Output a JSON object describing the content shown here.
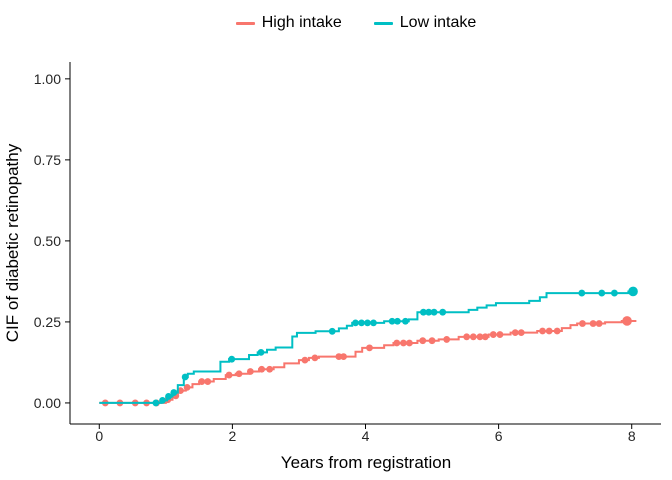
{
  "figure": {
    "background": "#ffffff"
  },
  "legend": {
    "position": "top-center",
    "items": [
      {
        "label": "High intake",
        "color": "#F8766D"
      },
      {
        "label": "Low intake",
        "color": "#00BFC4"
      }
    ]
  },
  "chart_data": {
    "type": "line",
    "subtype": "step-cumulative-incidence",
    "title": "",
    "xlabel": "Years from registration",
    "ylabel": "CIF of diabetic retinopathy",
    "x_ticks": {
      "values": [
        0,
        2,
        4,
        6,
        8
      ],
      "labels": [
        "0",
        "2",
        "4",
        "6",
        "8"
      ]
    },
    "y_ticks": {
      "values": [
        0,
        0.25,
        0.5,
        0.75,
        1.0
      ],
      "labels": [
        "0.00",
        "0.25",
        "0.50",
        "0.75",
        "1.00"
      ]
    },
    "xlim": [
      -0.44,
      8.44
    ],
    "ylim": [
      -0.065,
      1.052
    ],
    "grid": false,
    "legend_position": "top",
    "curve_style": "step-after",
    "series": [
      {
        "name": "High intake",
        "color": "#F8766D",
        "steps": [
          [
            0.0,
            0.0
          ],
          [
            1.0,
            0.01
          ],
          [
            1.1,
            0.022
          ],
          [
            1.18,
            0.038
          ],
          [
            1.3,
            0.048
          ],
          [
            1.4,
            0.058
          ],
          [
            1.5,
            0.066
          ],
          [
            1.72,
            0.074
          ],
          [
            1.9,
            0.086
          ],
          [
            2.05,
            0.09
          ],
          [
            2.25,
            0.097
          ],
          [
            2.4,
            0.104
          ],
          [
            2.62,
            0.11
          ],
          [
            2.78,
            0.122
          ],
          [
            3.0,
            0.132
          ],
          [
            3.15,
            0.139
          ],
          [
            3.3,
            0.143
          ],
          [
            3.85,
            0.158
          ],
          [
            3.95,
            0.17
          ],
          [
            4.28,
            0.178
          ],
          [
            4.42,
            0.185
          ],
          [
            4.78,
            0.192
          ],
          [
            5.1,
            0.196
          ],
          [
            5.4,
            0.204
          ],
          [
            5.85,
            0.211
          ],
          [
            6.18,
            0.217
          ],
          [
            6.58,
            0.222
          ],
          [
            6.95,
            0.231
          ],
          [
            7.08,
            0.24
          ],
          [
            7.18,
            0.245
          ],
          [
            7.6,
            0.249
          ],
          [
            7.85,
            0.253
          ],
          [
            8.07,
            0.253
          ]
        ],
        "markers": [
          0.09,
          0.31,
          0.54,
          0.71,
          0.86,
          1.03,
          1.15,
          1.22,
          1.32,
          1.54,
          1.63,
          1.95,
          2.1,
          2.27,
          2.44,
          2.56,
          3.09,
          3.24,
          3.6,
          3.67,
          4.06,
          4.47,
          4.57,
          4.66,
          4.86,
          5.0,
          5.22,
          5.52,
          5.62,
          5.72,
          5.8,
          5.92,
          6.02,
          6.25,
          6.34,
          6.66,
          6.76,
          6.88,
          7.26,
          7.42,
          7.51
        ],
        "end_marker": 7.93
      },
      {
        "name": "Low intake",
        "color": "#00BFC4",
        "steps": [
          [
            0.0,
            0.0
          ],
          [
            0.93,
            0.008
          ],
          [
            1.02,
            0.02
          ],
          [
            1.1,
            0.032
          ],
          [
            1.18,
            0.055
          ],
          [
            1.27,
            0.08
          ],
          [
            1.33,
            0.09
          ],
          [
            1.42,
            0.097
          ],
          [
            1.82,
            0.127
          ],
          [
            1.95,
            0.135
          ],
          [
            2.25,
            0.148
          ],
          [
            2.38,
            0.156
          ],
          [
            2.52,
            0.164
          ],
          [
            2.65,
            0.171
          ],
          [
            2.9,
            0.205
          ],
          [
            2.97,
            0.216
          ],
          [
            3.25,
            0.221
          ],
          [
            3.6,
            0.23
          ],
          [
            3.72,
            0.238
          ],
          [
            3.8,
            0.247
          ],
          [
            4.28,
            0.252
          ],
          [
            4.65,
            0.258
          ],
          [
            4.78,
            0.28
          ],
          [
            5.55,
            0.287
          ],
          [
            5.68,
            0.294
          ],
          [
            5.82,
            0.301
          ],
          [
            5.96,
            0.308
          ],
          [
            6.46,
            0.315
          ],
          [
            6.62,
            0.326
          ],
          [
            6.72,
            0.339
          ],
          [
            7.95,
            0.344
          ],
          [
            8.02,
            0.344
          ]
        ],
        "markers": [
          0.85,
          0.95,
          1.04,
          1.12,
          1.29,
          1.99,
          2.43,
          3.5,
          3.85,
          3.94,
          4.03,
          4.12,
          4.4,
          4.48,
          4.6,
          4.87,
          4.95,
          5.03,
          5.16,
          7.25,
          7.55,
          7.74
        ],
        "end_marker": 8.02
      }
    ]
  }
}
